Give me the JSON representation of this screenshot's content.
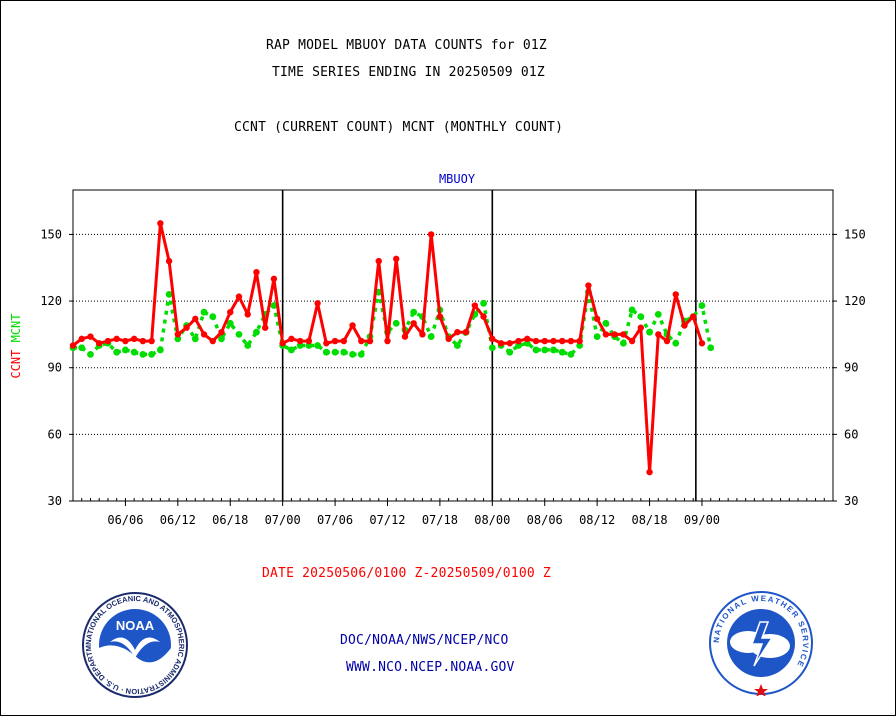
{
  "header": {
    "title_line1": "RAP MODEL MBUOY DATA COUNTS for 01Z",
    "title_line2": "TIME SERIES ENDING IN 20250509 01Z",
    "subtitle": "CCNT (CURRENT COUNT) MCNT (MONTHLY COUNT)"
  },
  "footer": {
    "date_range": "DATE 20250506/0100 Z-20250509/0100 Z",
    "org_path": "DOC/NOAA/NWS/NCEP/NCO",
    "website": "WWW.NCO.NCEP.NOAA.GOV",
    "noaa_logo_text": "NOAA",
    "noaa_seal_ring": "NATIONAL OCEANIC AND ATMOSPHERIC ADMINISTRATION · U.S. DEPARTMENT OF COMMERCE",
    "nws_seal_ring": "NATIONAL WEATHER SERVICE"
  },
  "colors": {
    "ccnt": "#ff0000",
    "mcnt": "#00dd00",
    "panel_label": "#0000cc",
    "date_text": "#ff0000",
    "link_text": "#0000aa"
  },
  "chart_data": {
    "type": "line",
    "title": "MBUOY",
    "ylabel_parts": [
      "CCNT",
      "MCNT"
    ],
    "ylim": [
      30,
      170
    ],
    "yticks": [
      30,
      60,
      90,
      120,
      150
    ],
    "xlim": [
      0,
      87
    ],
    "x_ticks": [
      {
        "x": 6,
        "label": "06/06"
      },
      {
        "x": 12,
        "label": "06/12"
      },
      {
        "x": 18,
        "label": "06/18"
      },
      {
        "x": 24,
        "label": "07/00"
      },
      {
        "x": 30,
        "label": "07/06"
      },
      {
        "x": 36,
        "label": "07/12"
      },
      {
        "x": 42,
        "label": "07/18"
      },
      {
        "x": 48,
        "label": "08/00"
      },
      {
        "x": 54,
        "label": "08/06"
      },
      {
        "x": 60,
        "label": "08/12"
      },
      {
        "x": 66,
        "label": "08/18"
      },
      {
        "x": 72,
        "label": "09/00"
      }
    ],
    "vlines": [
      24,
      48,
      71.3
    ],
    "grid_y": [
      60,
      90,
      120,
      150
    ],
    "series": [
      {
        "name": "CCNT",
        "color": "#ff0000",
        "values": [
          [
            0,
            100
          ],
          [
            1,
            103
          ],
          [
            2,
            104
          ],
          [
            3,
            101
          ],
          [
            4,
            102
          ],
          [
            5,
            103
          ],
          [
            6,
            102
          ],
          [
            7,
            103
          ],
          [
            8,
            102
          ],
          [
            9,
            102
          ],
          [
            10,
            155
          ],
          [
            11,
            138
          ],
          [
            12,
            105
          ],
          [
            13,
            108
          ],
          [
            14,
            112
          ],
          [
            15,
            105
          ],
          [
            16,
            102
          ],
          [
            17,
            106
          ],
          [
            18,
            115
          ],
          [
            19,
            122
          ],
          [
            20,
            114
          ],
          [
            21,
            133
          ],
          [
            22,
            108
          ],
          [
            23,
            130
          ],
          [
            24,
            101
          ],
          [
            25,
            103
          ],
          [
            26,
            102
          ],
          [
            27,
            102
          ],
          [
            28,
            119
          ],
          [
            29,
            101
          ],
          [
            30,
            102
          ],
          [
            31,
            102
          ],
          [
            32,
            109
          ],
          [
            33,
            102
          ],
          [
            34,
            102
          ],
          [
            35,
            138
          ],
          [
            36,
            102
          ],
          [
            37,
            139
          ],
          [
            38,
            104
          ],
          [
            39,
            110
          ],
          [
            40,
            105
          ],
          [
            41,
            150
          ],
          [
            42,
            113
          ],
          [
            43,
            103
          ],
          [
            44,
            106
          ],
          [
            45,
            106
          ],
          [
            46,
            118
          ],
          [
            47,
            113
          ],
          [
            48,
            103
          ],
          [
            49,
            101
          ],
          [
            50,
            101
          ],
          [
            51,
            102
          ],
          [
            52,
            103
          ],
          [
            53,
            102
          ],
          [
            54,
            102
          ],
          [
            55,
            102
          ],
          [
            56,
            102
          ],
          [
            57,
            102
          ],
          [
            58,
            102
          ],
          [
            59,
            127
          ],
          [
            60,
            112
          ],
          [
            61,
            105
          ],
          [
            62,
            105
          ],
          [
            63,
            105
          ],
          [
            64,
            102
          ],
          [
            65,
            108
          ],
          [
            66,
            43
          ],
          [
            67,
            105
          ],
          [
            68,
            102
          ],
          [
            69,
            123
          ],
          [
            70,
            109
          ],
          [
            71,
            113
          ],
          [
            72,
            101
          ]
        ]
      },
      {
        "name": "MCNT",
        "color": "#00dd00",
        "values": [
          [
            0,
            99
          ],
          [
            1,
            99
          ],
          [
            2,
            96
          ],
          [
            3,
            100
          ],
          [
            4,
            101
          ],
          [
            5,
            97
          ],
          [
            6,
            98
          ],
          [
            7,
            97
          ],
          [
            8,
            96
          ],
          [
            9,
            96
          ],
          [
            10,
            98
          ],
          [
            11,
            123
          ],
          [
            12,
            103
          ],
          [
            13,
            109
          ],
          [
            14,
            103
          ],
          [
            15,
            115
          ],
          [
            16,
            113
          ],
          [
            17,
            103
          ],
          [
            18,
            110
          ],
          [
            19,
            105
          ],
          [
            20,
            100
          ],
          [
            21,
            106
          ],
          [
            22,
            114
          ],
          [
            23,
            118
          ],
          [
            24,
            100
          ],
          [
            25,
            98
          ],
          [
            26,
            100
          ],
          [
            27,
            100
          ],
          [
            28,
            100
          ],
          [
            29,
            97
          ],
          [
            30,
            97
          ],
          [
            31,
            97
          ],
          [
            32,
            96
          ],
          [
            33,
            96
          ],
          [
            34,
            104
          ],
          [
            35,
            124
          ],
          [
            36,
            106
          ],
          [
            37,
            110
          ],
          [
            38,
            107
          ],
          [
            39,
            115
          ],
          [
            40,
            113
          ],
          [
            41,
            104
          ],
          [
            42,
            116
          ],
          [
            43,
            104
          ],
          [
            44,
            100
          ],
          [
            45,
            106
          ],
          [
            46,
            114
          ],
          [
            47,
            119
          ],
          [
            48,
            99
          ],
          [
            49,
            100
          ],
          [
            50,
            97
          ],
          [
            51,
            100
          ],
          [
            52,
            101
          ],
          [
            53,
            98
          ],
          [
            54,
            98
          ],
          [
            55,
            98
          ],
          [
            56,
            97
          ],
          [
            57,
            96
          ],
          [
            58,
            100
          ],
          [
            59,
            124
          ],
          [
            60,
            104
          ],
          [
            61,
            110
          ],
          [
            62,
            104
          ],
          [
            63,
            101
          ],
          [
            64,
            116
          ],
          [
            65,
            113
          ],
          [
            66,
            106
          ],
          [
            67,
            114
          ],
          [
            68,
            105
          ],
          [
            69,
            101
          ],
          [
            70,
            111
          ],
          [
            71,
            113
          ],
          [
            72,
            118
          ],
          [
            73,
            99
          ]
        ]
      }
    ]
  }
}
